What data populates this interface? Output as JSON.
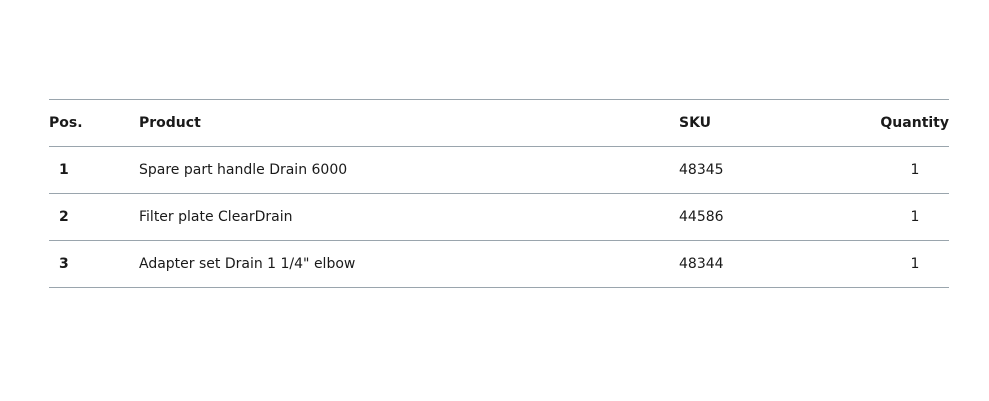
{
  "colors": {
    "divider": "#9aa5ad",
    "text": "#1a1a1a"
  },
  "table": {
    "headers": {
      "pos": "Pos.",
      "product": "Product",
      "sku": "SKU",
      "quantity": "Quantity"
    },
    "rows": [
      {
        "pos": "1",
        "product": "Spare part handle Drain 6000",
        "sku": "48345",
        "quantity": "1"
      },
      {
        "pos": "2",
        "product": "Filter plate ClearDrain",
        "sku": "44586",
        "quantity": "1"
      },
      {
        "pos": "3",
        "product": "Adapter set Drain 1 1/4\" elbow",
        "sku": "48344",
        "quantity": "1"
      }
    ]
  }
}
